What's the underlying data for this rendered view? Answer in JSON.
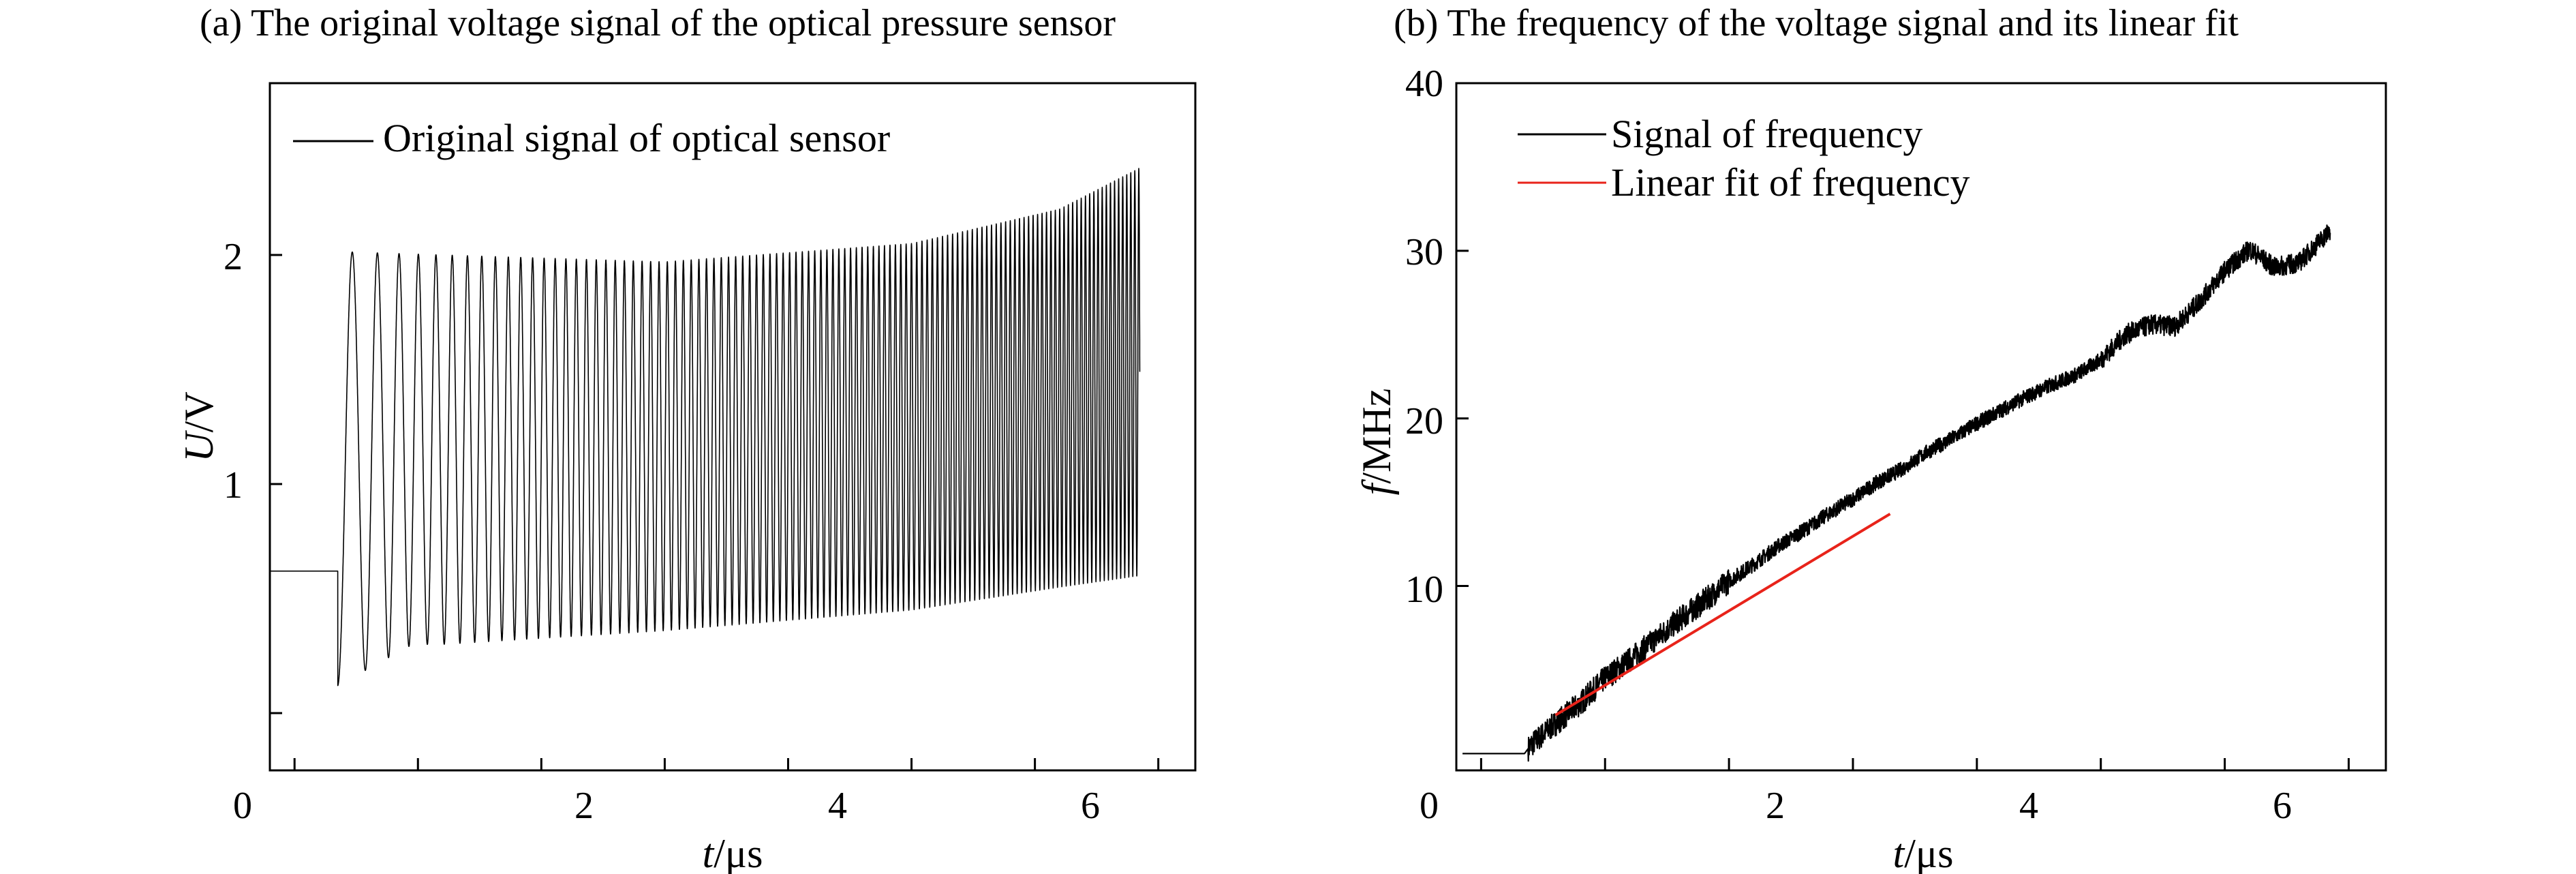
{
  "panel_a": {
    "title": "(a) The original voltage signal of the optical pressure sensor",
    "xlabel_var": "t",
    "xlabel_unit": "/μs",
    "ylabel_var": "U",
    "ylabel_unit": "/V",
    "legend": "Original signal of optical sensor",
    "xticks": [
      "0",
      "2",
      "4",
      "6"
    ],
    "yticks": [
      "1",
      "2"
    ]
  },
  "panel_b": {
    "title": "(b) The frequency of the voltage signal and its linear fit",
    "xlabel_var": "t",
    "xlabel_unit": "/μs",
    "ylabel_var": "f",
    "ylabel_unit": "/MHz",
    "legend_signal": "Signal of frequency",
    "legend_fit": "Linear fit of frequency",
    "xticks": [
      "0",
      "2",
      "4",
      "6"
    ],
    "yticks": [
      "10",
      "20",
      "30",
      "40"
    ]
  },
  "chart_data": [
    {
      "type": "line",
      "title": "(a) The original voltage signal of the optical pressure sensor",
      "xlabel": "t/μs",
      "ylabel": "U/V",
      "xlim": [
        -0.2,
        7.3
      ],
      "ylim": [
        -0.25,
        2.75
      ],
      "xticks": [
        0,
        2,
        4,
        6
      ],
      "yticks": [
        1,
        2
      ],
      "grid": false,
      "legend": "top-left",
      "series": [
        {
          "name": "Original signal of optical sensor",
          "color": "#000000",
          "description_points": {
            "baseline_until_t": 0.35,
            "baseline_U": 0.62,
            "first_min": [
              0.58,
              0.12
            ],
            "first_max": [
              0.8,
              2.03
            ],
            "envelope_upper": [
              [
                1.2,
                2.0
              ],
              [
                3.0,
                1.97
              ],
              [
                5.0,
                2.05
              ],
              [
                6.2,
                2.2
              ],
              [
                6.85,
                2.38
              ]
            ],
            "envelope_lower": [
              [
                1.2,
                0.3
              ],
              [
                3.0,
                0.36
              ],
              [
                5.0,
                0.45
              ],
              [
                6.2,
                0.55
              ],
              [
                6.85,
                0.6
              ]
            ],
            "frequency_MHz_start": 4.0,
            "frequency_MHz_end": 31.0
          }
        }
      ]
    },
    {
      "type": "line",
      "title": "(b) The frequency of the voltage signal and its linear fit",
      "xlabel": "t/μs",
      "ylabel": "f/MHz",
      "xlim": [
        -0.2,
        7.3
      ],
      "ylim": [
        -1,
        40
      ],
      "xticks": [
        0,
        2,
        4,
        6
      ],
      "yticks": [
        10,
        20,
        30,
        40
      ],
      "grid": false,
      "legend": "top-left",
      "series": [
        {
          "name": "Signal of frequency",
          "color": "#000000",
          "x": [
            0.0,
            0.35,
            0.4,
            0.6,
            0.8,
            1.0,
            1.2,
            1.4,
            1.6,
            1.8,
            2.0,
            2.2,
            2.4,
            2.6,
            2.8,
            3.0,
            3.2,
            3.4,
            3.6,
            3.8,
            4.0,
            4.2,
            4.4,
            4.6,
            4.8,
            5.0,
            5.2,
            5.4,
            5.6,
            5.8,
            6.0,
            6.2,
            6.4,
            6.6,
            6.85
          ],
          "y": [
            0.0,
            0.0,
            0.5,
            1.8,
            3.0,
            4.5,
            5.6,
            6.8,
            8.0,
            9.1,
            10.3,
            11.3,
            12.4,
            13.3,
            14.3,
            15.2,
            16.2,
            17.0,
            18.0,
            18.8,
            19.7,
            20.5,
            21.3,
            22.0,
            22.6,
            23.5,
            25.0,
            25.6,
            25.5,
            27.0,
            28.8,
            30.1,
            29.0,
            29.3,
            31.2
          ]
        },
        {
          "name": "Linear fit of frequency",
          "color": "#e8231a",
          "x": [
            0.6,
            3.3
          ],
          "y": [
            2.3,
            14.3
          ]
        }
      ]
    }
  ]
}
